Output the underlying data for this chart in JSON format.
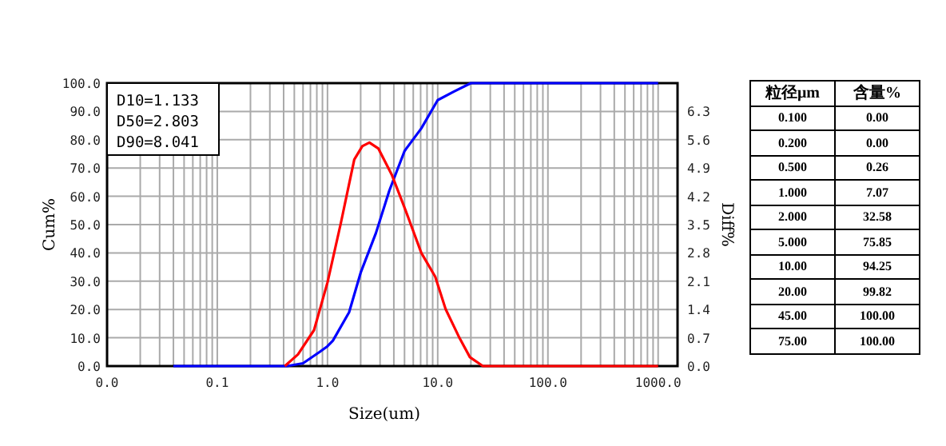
{
  "chart_data": [
    {
      "type": "line",
      "xlabel": "Size(um)",
      "ylabel": "Cum%",
      "y2label": "Diff%",
      "log": "x",
      "grid": true,
      "line_style": "solid",
      "xlim": [
        0.01,
        1500
      ],
      "xticks": [
        {
          "value": 0.01,
          "label": "0.0"
        },
        {
          "value": 0.1,
          "label": "0.1"
        },
        {
          "value": 1,
          "label": "1.0"
        },
        {
          "value": 10,
          "label": "10.0"
        },
        {
          "value": 100,
          "label": "100.0"
        },
        {
          "value": 1000,
          "label": "1000.0"
        }
      ],
      "ylim": [
        0,
        100
      ],
      "yticks": [
        {
          "value": 0,
          "label": "0.0"
        },
        {
          "value": 10,
          "label": "10.0"
        },
        {
          "value": 20,
          "label": "20.0"
        },
        {
          "value": 30,
          "label": "30.0"
        },
        {
          "value": 40,
          "label": "40.0"
        },
        {
          "value": 50,
          "label": "50.0"
        },
        {
          "value": 60,
          "label": "60.0"
        },
        {
          "value": 70,
          "label": "70.0"
        },
        {
          "value": 80,
          "label": "80.0"
        },
        {
          "value": 90,
          "label": "90.0"
        },
        {
          "value": 100,
          "label": "100.0"
        }
      ],
      "y2lim": [
        0,
        7
      ],
      "y2ticks": [
        {
          "value": 0,
          "label": "0.0"
        },
        0.7,
        1.4,
        2.1,
        2.8,
        3.5,
        4.2,
        4.9,
        5.6,
        6.3
      ],
      "annotations": [
        "D10=1.133",
        "D50=2.803",
        "D90=8.041"
      ],
      "series": [
        {
          "color": "#0000ff",
          "x": [
            0.04,
            0.43,
            0.6,
            0.85,
            1.0,
            1.12,
            1.57,
            2.0,
            2.75,
            3.64,
            5.0,
            7.1,
            10,
            14,
            20,
            25,
            45,
            75,
            1000
          ],
          "values": [
            0,
            0,
            1,
            5,
            7,
            9,
            19,
            33,
            47,
            62,
            76,
            84,
            94,
            97,
            100,
            100,
            100,
            100,
            100
          ]
        },
        {
          "color": "#ff0000",
          "axis": "y2",
          "x": [
            0.41,
            0.54,
            0.755,
            1.0,
            1.32,
            1.75,
            2.07,
            2.4,
            2.9,
            3.85,
            5.1,
            7.1,
            9.5,
            11.8,
            15.8,
            19.6,
            25.7,
            1000
          ],
          "values": [
            0,
            0.29,
            0.89,
            2.07,
            3.53,
            5.11,
            5.44,
            5.53,
            5.38,
            4.72,
            3.86,
            2.8,
            2.21,
            1.41,
            0.69,
            0.22,
            0,
            0
          ]
        }
      ]
    },
    {
      "type": "other",
      "xlabel": "粒径μm",
      "ylabel": "含量%",
      "categories": [
        "0.100",
        "0.200",
        "0.500",
        "1.000",
        "2.000",
        "5.000",
        "10.00",
        "20.00",
        "45.00",
        "75.00"
      ],
      "value_labels": [
        "0.00",
        "0.00",
        "0.26",
        "7.07",
        "32.58",
        "75.85",
        "94.25",
        "99.82",
        "100.00",
        "100.00"
      ]
    }
  ]
}
